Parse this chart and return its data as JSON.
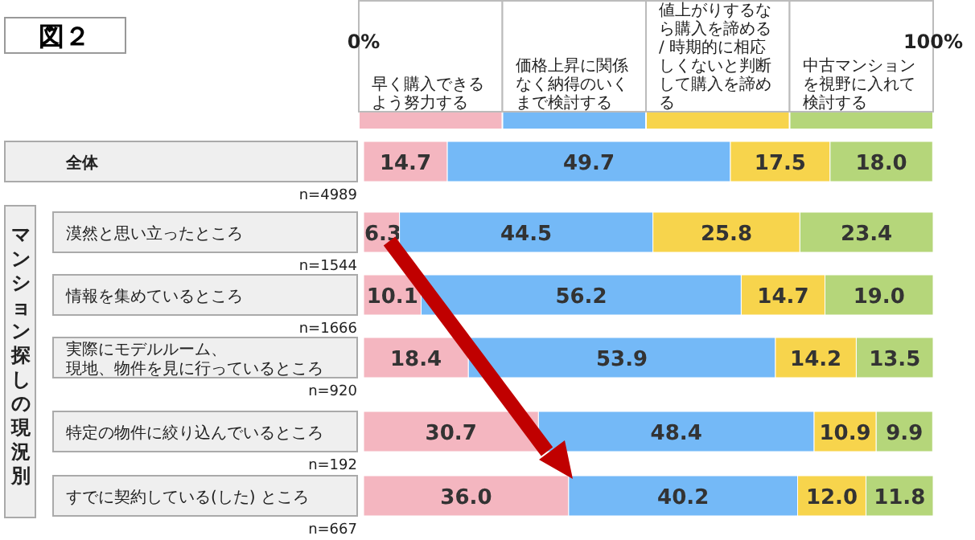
{
  "chart_data": {
    "type": "bar",
    "orientation": "horizontal",
    "stacked": true,
    "title": "図２",
    "ylabel": "マンション探しの現況別",
    "categories": [
      "全体",
      "漠然と思い立ったところ",
      "情報を集めているところ",
      "実際にモデルルーム、現地、物件を見に行っているところ",
      "特定の物件に絞り込んでいるところ",
      "すでに契約している(した) ところ"
    ],
    "series": [
      {
        "name": "早く購入できるよう努力する",
        "color": "#f4b6c0",
        "values": [
          14.7,
          6.3,
          10.1,
          18.4,
          30.7,
          36.0
        ],
        "value_labels": [
          "14.7",
          "6.3",
          "10.1",
          "18.4",
          "30.7",
          "36.0"
        ]
      },
      {
        "name": "価格上昇に関係なく納得のいくまで検討する",
        "color": "#74b9f7",
        "values": [
          49.7,
          44.5,
          56.2,
          53.9,
          48.4,
          40.2
        ],
        "value_labels": [
          "49.7",
          "44.5",
          "56.2",
          "53.9",
          "48.4",
          "40.2"
        ]
      },
      {
        "name": "値上がりするなら購入を諦める / 時期的に相応しくないと判断して購入を諦める",
        "color": "#f7d44c",
        "values": [
          17.5,
          25.8,
          14.7,
          14.2,
          10.9,
          12.0
        ],
        "value_labels": [
          "17.5",
          "25.8",
          "14.7",
          "14.2",
          "10.9",
          "12.0"
        ]
      },
      {
        "name": "中古マンションを視野に入れて検討する",
        "color": "#b5d67a",
        "values": [
          18.0,
          23.4,
          19.0,
          13.5,
          9.9,
          11.8
        ],
        "value_labels": [
          "18.0",
          "23.4",
          "19.0",
          "13.5",
          "9.9",
          "11.8"
        ]
      }
    ],
    "xlim": [
      0,
      100
    ],
    "xticks": [
      {
        "value": 0,
        "label": "0%"
      },
      {
        "value": 100,
        "label": "100%"
      }
    ],
    "legend": "top",
    "annotations": [
      "n=4989",
      "n=1544",
      "n=1666",
      "n=920",
      "n=192",
      "n=667"
    ]
  }
}
